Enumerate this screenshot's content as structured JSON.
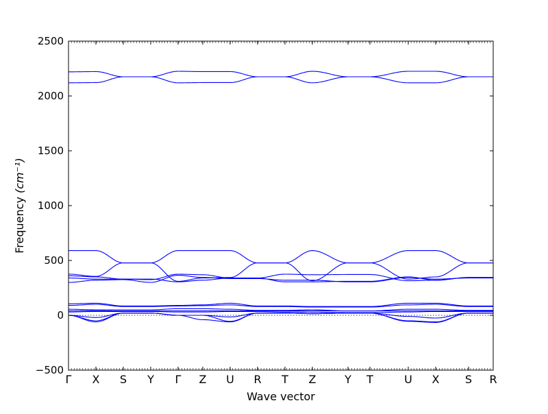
{
  "chart_data": {
    "type": "line",
    "xlabel": "Wave vector",
    "ylabel": "Frequency",
    "ylabel_unit": "(cm⁻¹)",
    "ylim": [
      -500,
      2500
    ],
    "yticks": [
      -500,
      0,
      500,
      1000,
      1500,
      2000,
      2500
    ],
    "kpath": [
      {
        "label": "Γ",
        "x": 0.0
      },
      {
        "label": "X",
        "x": 1.0
      },
      {
        "label": "S",
        "x": 2.0
      },
      {
        "label": "Y",
        "x": 3.0
      },
      {
        "label": "Γ",
        "x": 4.0
      },
      {
        "label": "Z",
        "x": 4.9
      },
      {
        "label": "U",
        "x": 5.9
      },
      {
        "label": "R",
        "x": 6.9
      },
      {
        "label": "T",
        "x": 7.9
      },
      {
        "label": "Z",
        "x": 8.9
      },
      {
        "label": "Y",
        "x": 10.2
      },
      {
        "label": "T",
        "x": 11.0
      },
      {
        "label": "U",
        "x": 12.4
      },
      {
        "label": "X",
        "x": 13.4
      },
      {
        "label": "S",
        "x": 14.6
      },
      {
        "label": "R",
        "x": 15.5
      }
    ],
    "series": [
      {
        "values": [
          2220,
          2222,
          2175,
          2175,
          2225,
          2222,
          2222,
          2175,
          2175,
          2225,
          2175,
          2175,
          2225,
          2225,
          2175,
          2175
        ]
      },
      {
        "values": [
          2120,
          2122,
          2175,
          2175,
          2120,
          2122,
          2122,
          2175,
          2175,
          2120,
          2175,
          2175,
          2120,
          2120,
          2175,
          2175
        ]
      },
      {
        "values": [
          590,
          590,
          478,
          478,
          590,
          590,
          590,
          478,
          478,
          590,
          478,
          478,
          590,
          590,
          478,
          478
        ]
      },
      {
        "values": [
          375,
          355,
          478,
          478,
          310,
          340,
          345,
          478,
          478,
          315,
          478,
          478,
          330,
          350,
          478,
          478
        ]
      },
      {
        "values": [
          360,
          350,
          330,
          325,
          375,
          370,
          340,
          340,
          375,
          370,
          372,
          372,
          315,
          320,
          345,
          345
        ]
      },
      {
        "values": [
          340,
          330,
          330,
          330,
          305,
          320,
          340,
          340,
          305,
          305,
          310,
          310,
          350,
          320,
          345,
          345
        ]
      },
      {
        "values": [
          300,
          320,
          325,
          300,
          365,
          345,
          335,
          335,
          320,
          320,
          305,
          305,
          345,
          330,
          340,
          340
        ]
      },
      {
        "values": [
          105,
          110,
          85,
          85,
          90,
          95,
          110,
          85,
          85,
          80,
          80,
          80,
          110,
          110,
          85,
          85
        ]
      },
      {
        "values": [
          90,
          100,
          80,
          80,
          85,
          88,
          95,
          80,
          80,
          75,
          75,
          75,
          95,
          100,
          80,
          80
        ]
      },
      {
        "values": [
          55,
          50,
          50,
          50,
          60,
          60,
          55,
          45,
          45,
          50,
          40,
          40,
          55,
          55,
          45,
          45
        ]
      },
      {
        "values": [
          40,
          42,
          40,
          40,
          40,
          40,
          40,
          40,
          40,
          40,
          40,
          40,
          40,
          40,
          40,
          40
        ]
      },
      {
        "values": [
          30,
          35,
          35,
          35,
          30,
          30,
          35,
          35,
          30,
          28,
          25,
          25,
          30,
          35,
          35,
          35
        ]
      },
      {
        "values": [
          0,
          -20,
          20,
          20,
          0,
          0,
          -15,
          20,
          20,
          15,
          20,
          20,
          -10,
          -25,
          20,
          20
        ]
      },
      {
        "values": [
          0,
          -50,
          20,
          20,
          0,
          0,
          -55,
          20,
          20,
          15,
          20,
          20,
          -50,
          -60,
          20,
          20
        ]
      },
      {
        "values": [
          0,
          -60,
          20,
          20,
          0,
          -40,
          -60,
          20,
          20,
          15,
          20,
          20,
          -55,
          -65,
          20,
          20
        ]
      }
    ]
  }
}
